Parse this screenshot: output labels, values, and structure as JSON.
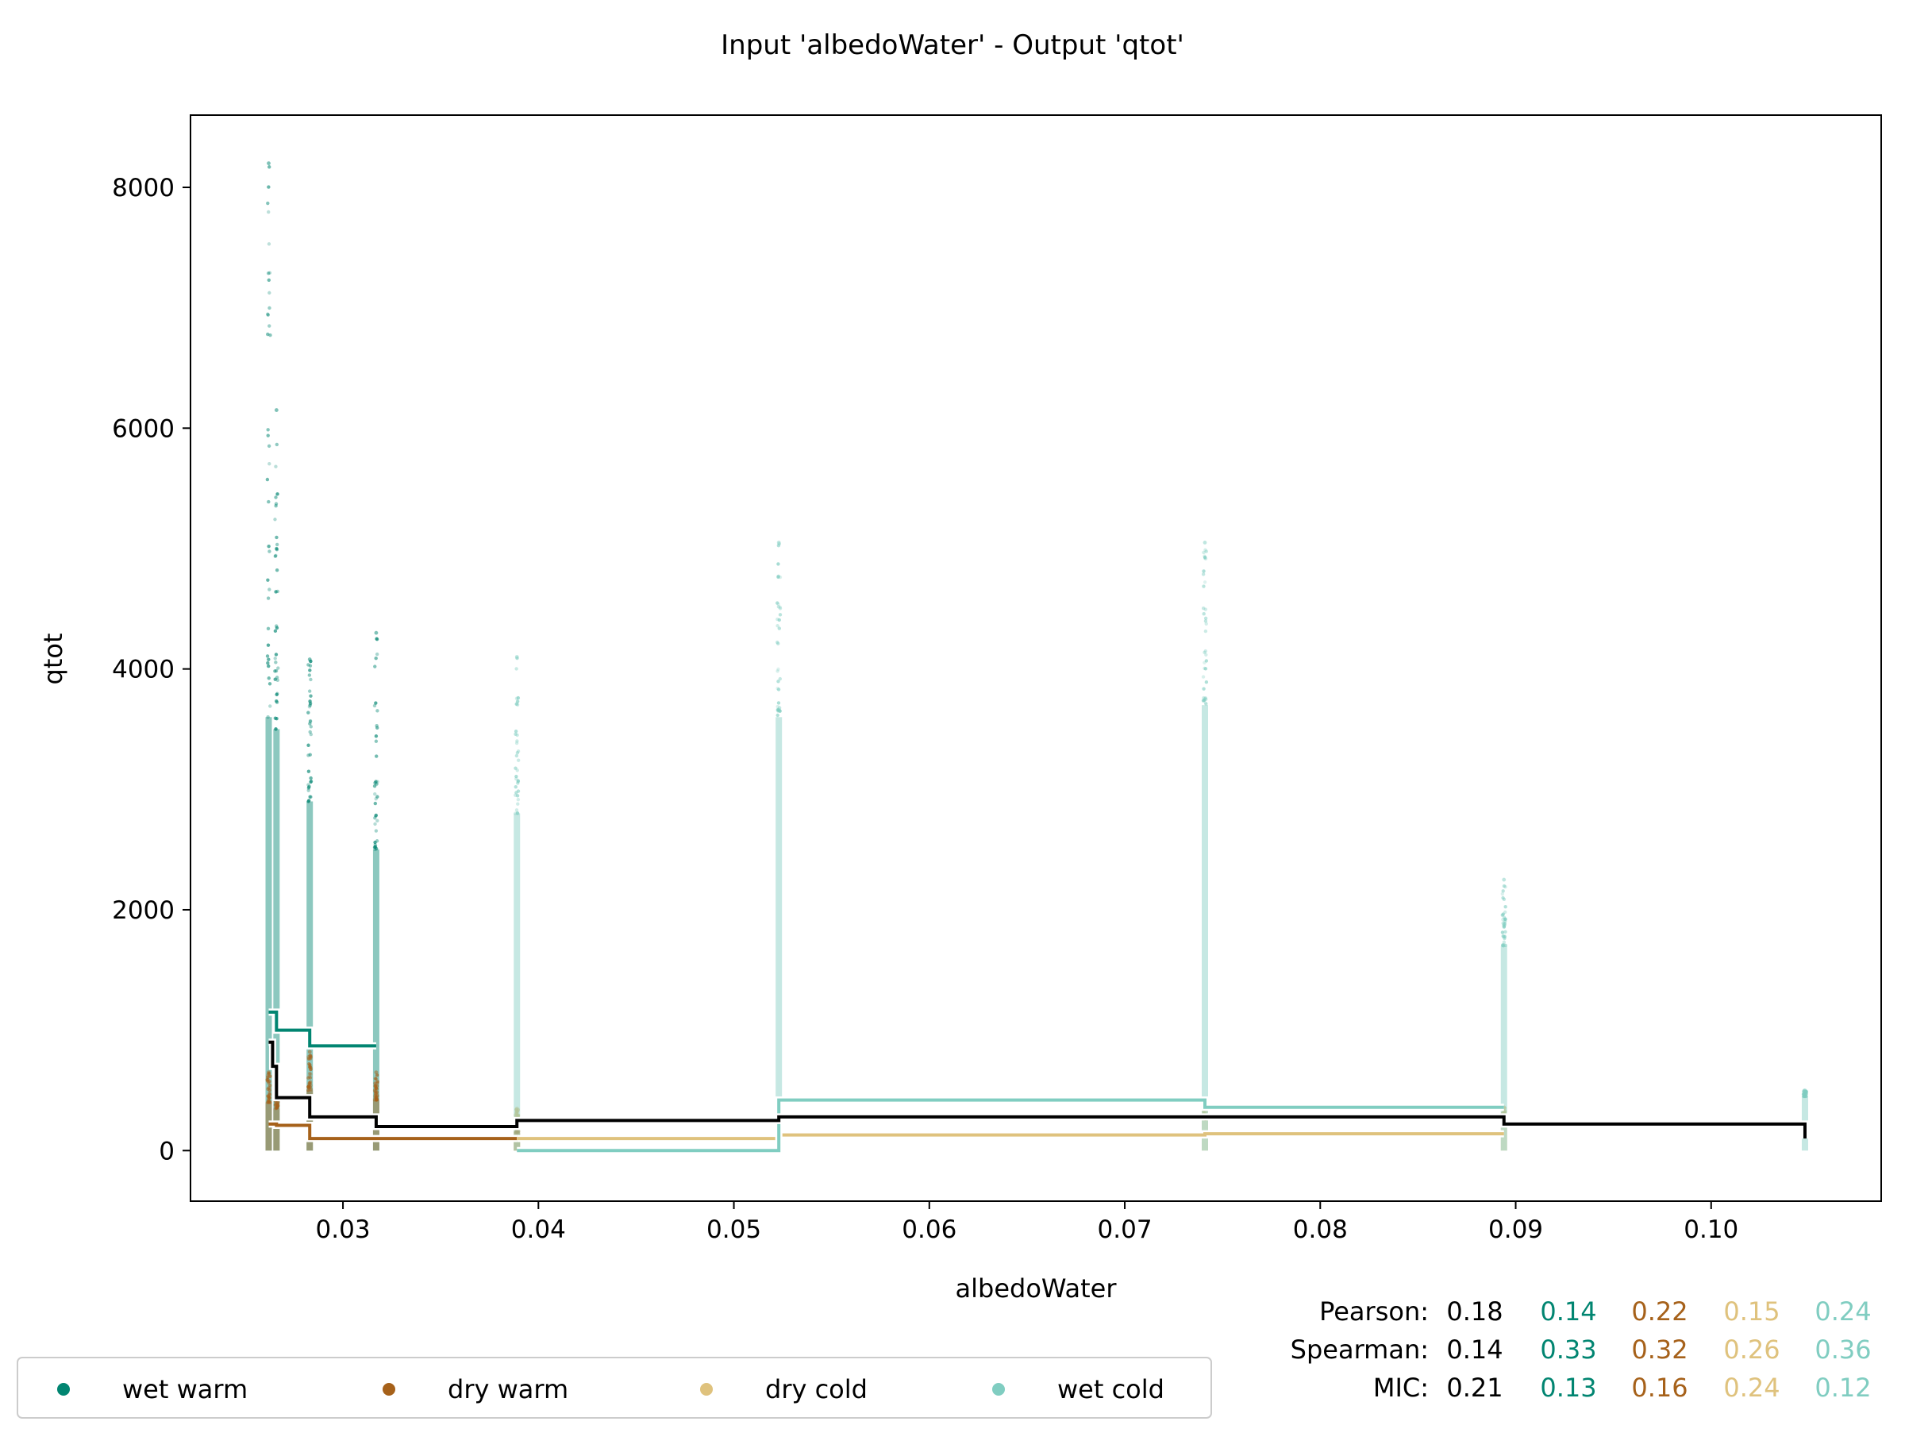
{
  "chart_data": {
    "type": "scatter",
    "title": "Input 'albedoWater' - Output 'qtot'",
    "xlabel": "albedoWater",
    "ylabel": "qtot",
    "xlim": [
      0.0222,
      0.1087
    ],
    "ylim": [
      -420,
      8600
    ],
    "xticks": [
      0.03,
      0.04,
      0.05,
      0.06,
      0.07,
      0.08,
      0.09,
      0.1
    ],
    "xtick_labels": [
      "0.03",
      "0.04",
      "0.05",
      "0.06",
      "0.07",
      "0.08",
      "0.09",
      "0.10"
    ],
    "yticks": [
      0,
      2000,
      4000,
      6000,
      8000
    ],
    "ytick_labels": [
      "0",
      "2000",
      "4000",
      "6000",
      "8000"
    ],
    "grid": false,
    "legend_position": "bottom-left",
    "colors": {
      "overall": "#000000",
      "wet_warm": "#018571",
      "dry_warm": "#a6611a",
      "dry_cold": "#dfc27d",
      "wet_cold": "#80cdc1"
    },
    "series": [
      {
        "name": "wet warm",
        "color": "#018571",
        "scatter_x": [
          0.0262,
          0.0266,
          0.0283,
          0.0317
        ],
        "scatter_max": [
          8200,
          6150,
          4080,
          4300
        ],
        "scatter_dense_max": [
          3600,
          3500,
          2900,
          2500
        ],
        "step_x": [
          0.0262,
          0.0266,
          0.0283,
          0.0317
        ],
        "step_y": [
          1150,
          1000,
          870,
          870
        ]
      },
      {
        "name": "dry warm",
        "color": "#a6611a",
        "scatter_x": [
          0.0262,
          0.0266,
          0.0283,
          0.0317,
          0.0389
        ],
        "scatter_max": [
          650,
          520,
          820,
          650,
          250
        ],
        "scatter_dense_max": [
          400,
          350,
          500,
          420,
          150
        ],
        "step_x": [
          0.0262,
          0.0266,
          0.0283,
          0.0317,
          0.0389
        ],
        "step_y": [
          220,
          210,
          100,
          100,
          100
        ]
      },
      {
        "name": "dry cold",
        "color": "#dfc27d",
        "scatter_x": [
          0.0389,
          0.0523,
          0.0741,
          0.0894
        ],
        "scatter_max": [
          350,
          380,
          420,
          360
        ],
        "scatter_dense_max": [
          250,
          250,
          260,
          240
        ],
        "step_x": [
          0.0389,
          0.0523,
          0.0741,
          0.0894
        ],
        "step_y": [
          100,
          130,
          140,
          140
        ]
      },
      {
        "name": "wet cold",
        "color": "#80cdc1",
        "scatter_x": [
          0.0389,
          0.0523,
          0.0741,
          0.0894,
          0.1048
        ],
        "scatter_max": [
          4100,
          5050,
          5050,
          2250,
          500
        ],
        "scatter_dense_max": [
          2800,
          3600,
          3700,
          1700,
          450
        ],
        "step_x": [
          0.0389,
          0.0523,
          0.0741,
          0.0894
        ],
        "step_y": [
          0,
          420,
          360,
          360
        ]
      }
    ],
    "overall_step": {
      "x": [
        0.0262,
        0.0264,
        0.0266,
        0.0283,
        0.0317,
        0.0389,
        0.0523,
        0.0741,
        0.0894,
        0.1048
      ],
      "y": [
        900,
        700,
        440,
        280,
        200,
        250,
        280,
        280,
        220,
        220
      ],
      "end_drop": 100
    },
    "stats": {
      "rows": [
        {
          "label": "Pearson:",
          "values": [
            "0.18",
            "0.14",
            "0.22",
            "0.15",
            "0.24"
          ]
        },
        {
          "label": "Spearman:",
          "values": [
            "0.14",
            "0.33",
            "0.32",
            "0.26",
            "0.36"
          ]
        },
        {
          "label": "MIC:",
          "values": [
            "0.21",
            "0.13",
            "0.16",
            "0.24",
            "0.12"
          ]
        }
      ],
      "value_colors": [
        "#000000",
        "#018571",
        "#a6611a",
        "#dfc27d",
        "#80cdc1"
      ]
    }
  }
}
